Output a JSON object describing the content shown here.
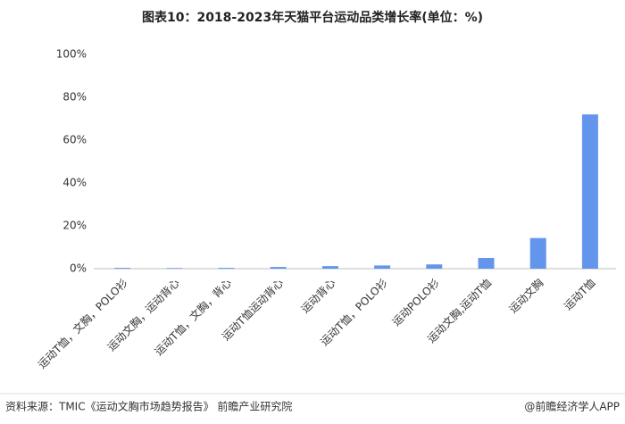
{
  "chart_data": {
    "type": "bar",
    "title": "图表10：2018-2023年天猫平台运动品类增长率(单位：%)",
    "categories": [
      "运动T恤，文胸，POLO衫",
      "运动文胸，运动背心",
      "运动T恤，文胸，背心",
      "运动T恤运动背心",
      "运动背心",
      "运动T恤，POLO衫",
      "运动POLO衫",
      "运动文胸,运动T恤",
      "运动文胸",
      "运动T恤"
    ],
    "values": [
      0.4,
      0.3,
      0.4,
      0.8,
      1.2,
      1.5,
      2,
      5,
      14.3,
      72
    ],
    "color": "#6495ed",
    "ylim": [
      0,
      100
    ],
    "yticks": [
      {
        "value": 0,
        "label": "0%"
      },
      {
        "value": 20,
        "label": "20%"
      },
      {
        "value": 40,
        "label": "40%"
      },
      {
        "value": 60,
        "label": "60%"
      },
      {
        "value": 80,
        "label": "80%"
      },
      {
        "value": 100,
        "label": "100%"
      }
    ],
    "grid": false,
    "source": "资料来源：TMIC《运动文胸市场趋势报告》 前瞻产业研究院",
    "credit": "@前瞻经济学人APP"
  }
}
